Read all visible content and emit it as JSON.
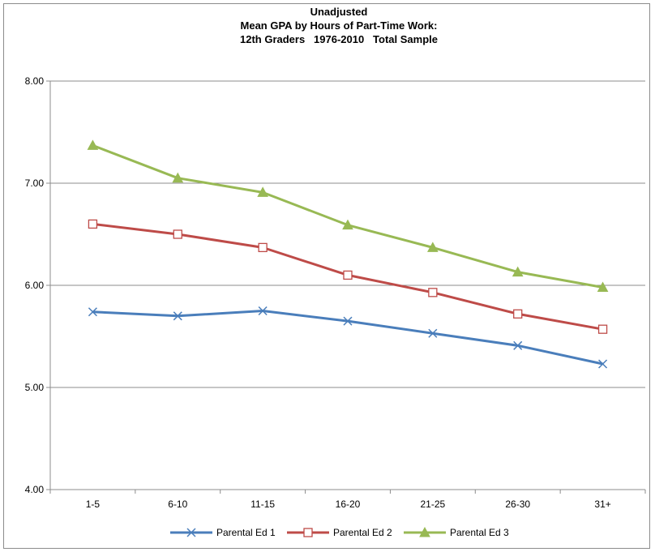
{
  "chart_data": {
    "type": "line",
    "title_lines": [
      "Unadjusted",
      "Mean GPA by Hours of Part-Time Work:",
      "12th Graders   1976-2010   Total Sample"
    ],
    "xlabel": "",
    "ylabel": "",
    "categories": [
      "1-5",
      "6-10",
      "11-15",
      "16-20",
      "21-25",
      "26-30",
      "31+"
    ],
    "ylim": [
      4.0,
      8.0
    ],
    "yticks": [
      "4.00",
      "5.00",
      "6.00",
      "7.00",
      "8.00"
    ],
    "grid": true,
    "legend_position": "bottom",
    "series": [
      {
        "name": "Parental Ed 1",
        "color": "#4a7ebb",
        "marker": "x",
        "values": [
          5.74,
          5.7,
          5.75,
          5.65,
          5.53,
          5.41,
          5.23
        ]
      },
      {
        "name": "Parental Ed 2",
        "color": "#be4b48",
        "marker": "square",
        "values": [
          6.6,
          6.5,
          6.37,
          6.1,
          5.93,
          5.72,
          5.57
        ]
      },
      {
        "name": "Parental Ed 3",
        "color": "#98b954",
        "marker": "triangle",
        "values": [
          7.37,
          7.05,
          6.91,
          6.59,
          6.37,
          6.13,
          5.98
        ]
      }
    ]
  }
}
